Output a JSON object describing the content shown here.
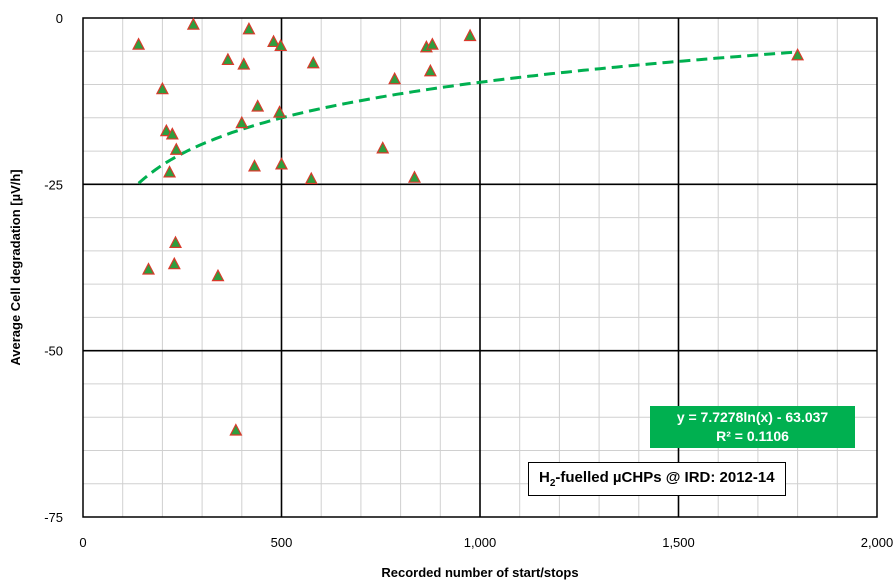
{
  "chart_data": {
    "type": "scatter",
    "xlabel": "Recorded number of start/stops",
    "ylabel": "Average Cell degradation [µV/h]",
    "xlim": [
      0,
      2000
    ],
    "ylim": [
      -75,
      0
    ],
    "x_ticks": [
      "0",
      "500",
      "1,000",
      "1,500",
      "2,000"
    ],
    "y_ticks": [
      "0",
      "-25",
      "-50",
      "-75"
    ],
    "grid": true,
    "marker": "triangle",
    "marker_fill": "#2e9e3e",
    "marker_edge": "#d93a2b",
    "trend_color": "#00b050",
    "points": [
      [
        140,
        -4.0
      ],
      [
        165,
        -37.8
      ],
      [
        200,
        -10.7
      ],
      [
        210,
        -17.0
      ],
      [
        218,
        -23.2
      ],
      [
        225,
        -17.5
      ],
      [
        230,
        -37.0
      ],
      [
        233,
        -33.8
      ],
      [
        235,
        -19.8
      ],
      [
        278,
        -1.0
      ],
      [
        340,
        -38.8
      ],
      [
        365,
        -6.3
      ],
      [
        385,
        -62.0
      ],
      [
        400,
        -15.8
      ],
      [
        405,
        -7.0
      ],
      [
        418,
        -1.7
      ],
      [
        432,
        -22.3
      ],
      [
        440,
        -13.3
      ],
      [
        480,
        -3.6
      ],
      [
        495,
        -14.2
      ],
      [
        498,
        -4.2
      ],
      [
        500,
        -22.0
      ],
      [
        575,
        -24.2
      ],
      [
        580,
        -6.8
      ],
      [
        755,
        -19.6
      ],
      [
        785,
        -9.2
      ],
      [
        835,
        -24.0
      ],
      [
        865,
        -4.4
      ],
      [
        875,
        -8.0
      ],
      [
        880,
        -4.0
      ],
      [
        975,
        -2.7
      ],
      [
        1800,
        -5.6
      ]
    ],
    "trendline": {
      "type": "log",
      "a": 7.7278,
      "b": -63.037,
      "x_range": [
        140,
        1800
      ]
    },
    "equation_lines": [
      "y = 7.7278ln(x) - 63.037",
      "R² = 0.1106"
    ],
    "legend": {
      "prefix": "H",
      "subscript": "2",
      "suffix": "-fuelled µCHPs @ IRD: 2012-14"
    }
  }
}
